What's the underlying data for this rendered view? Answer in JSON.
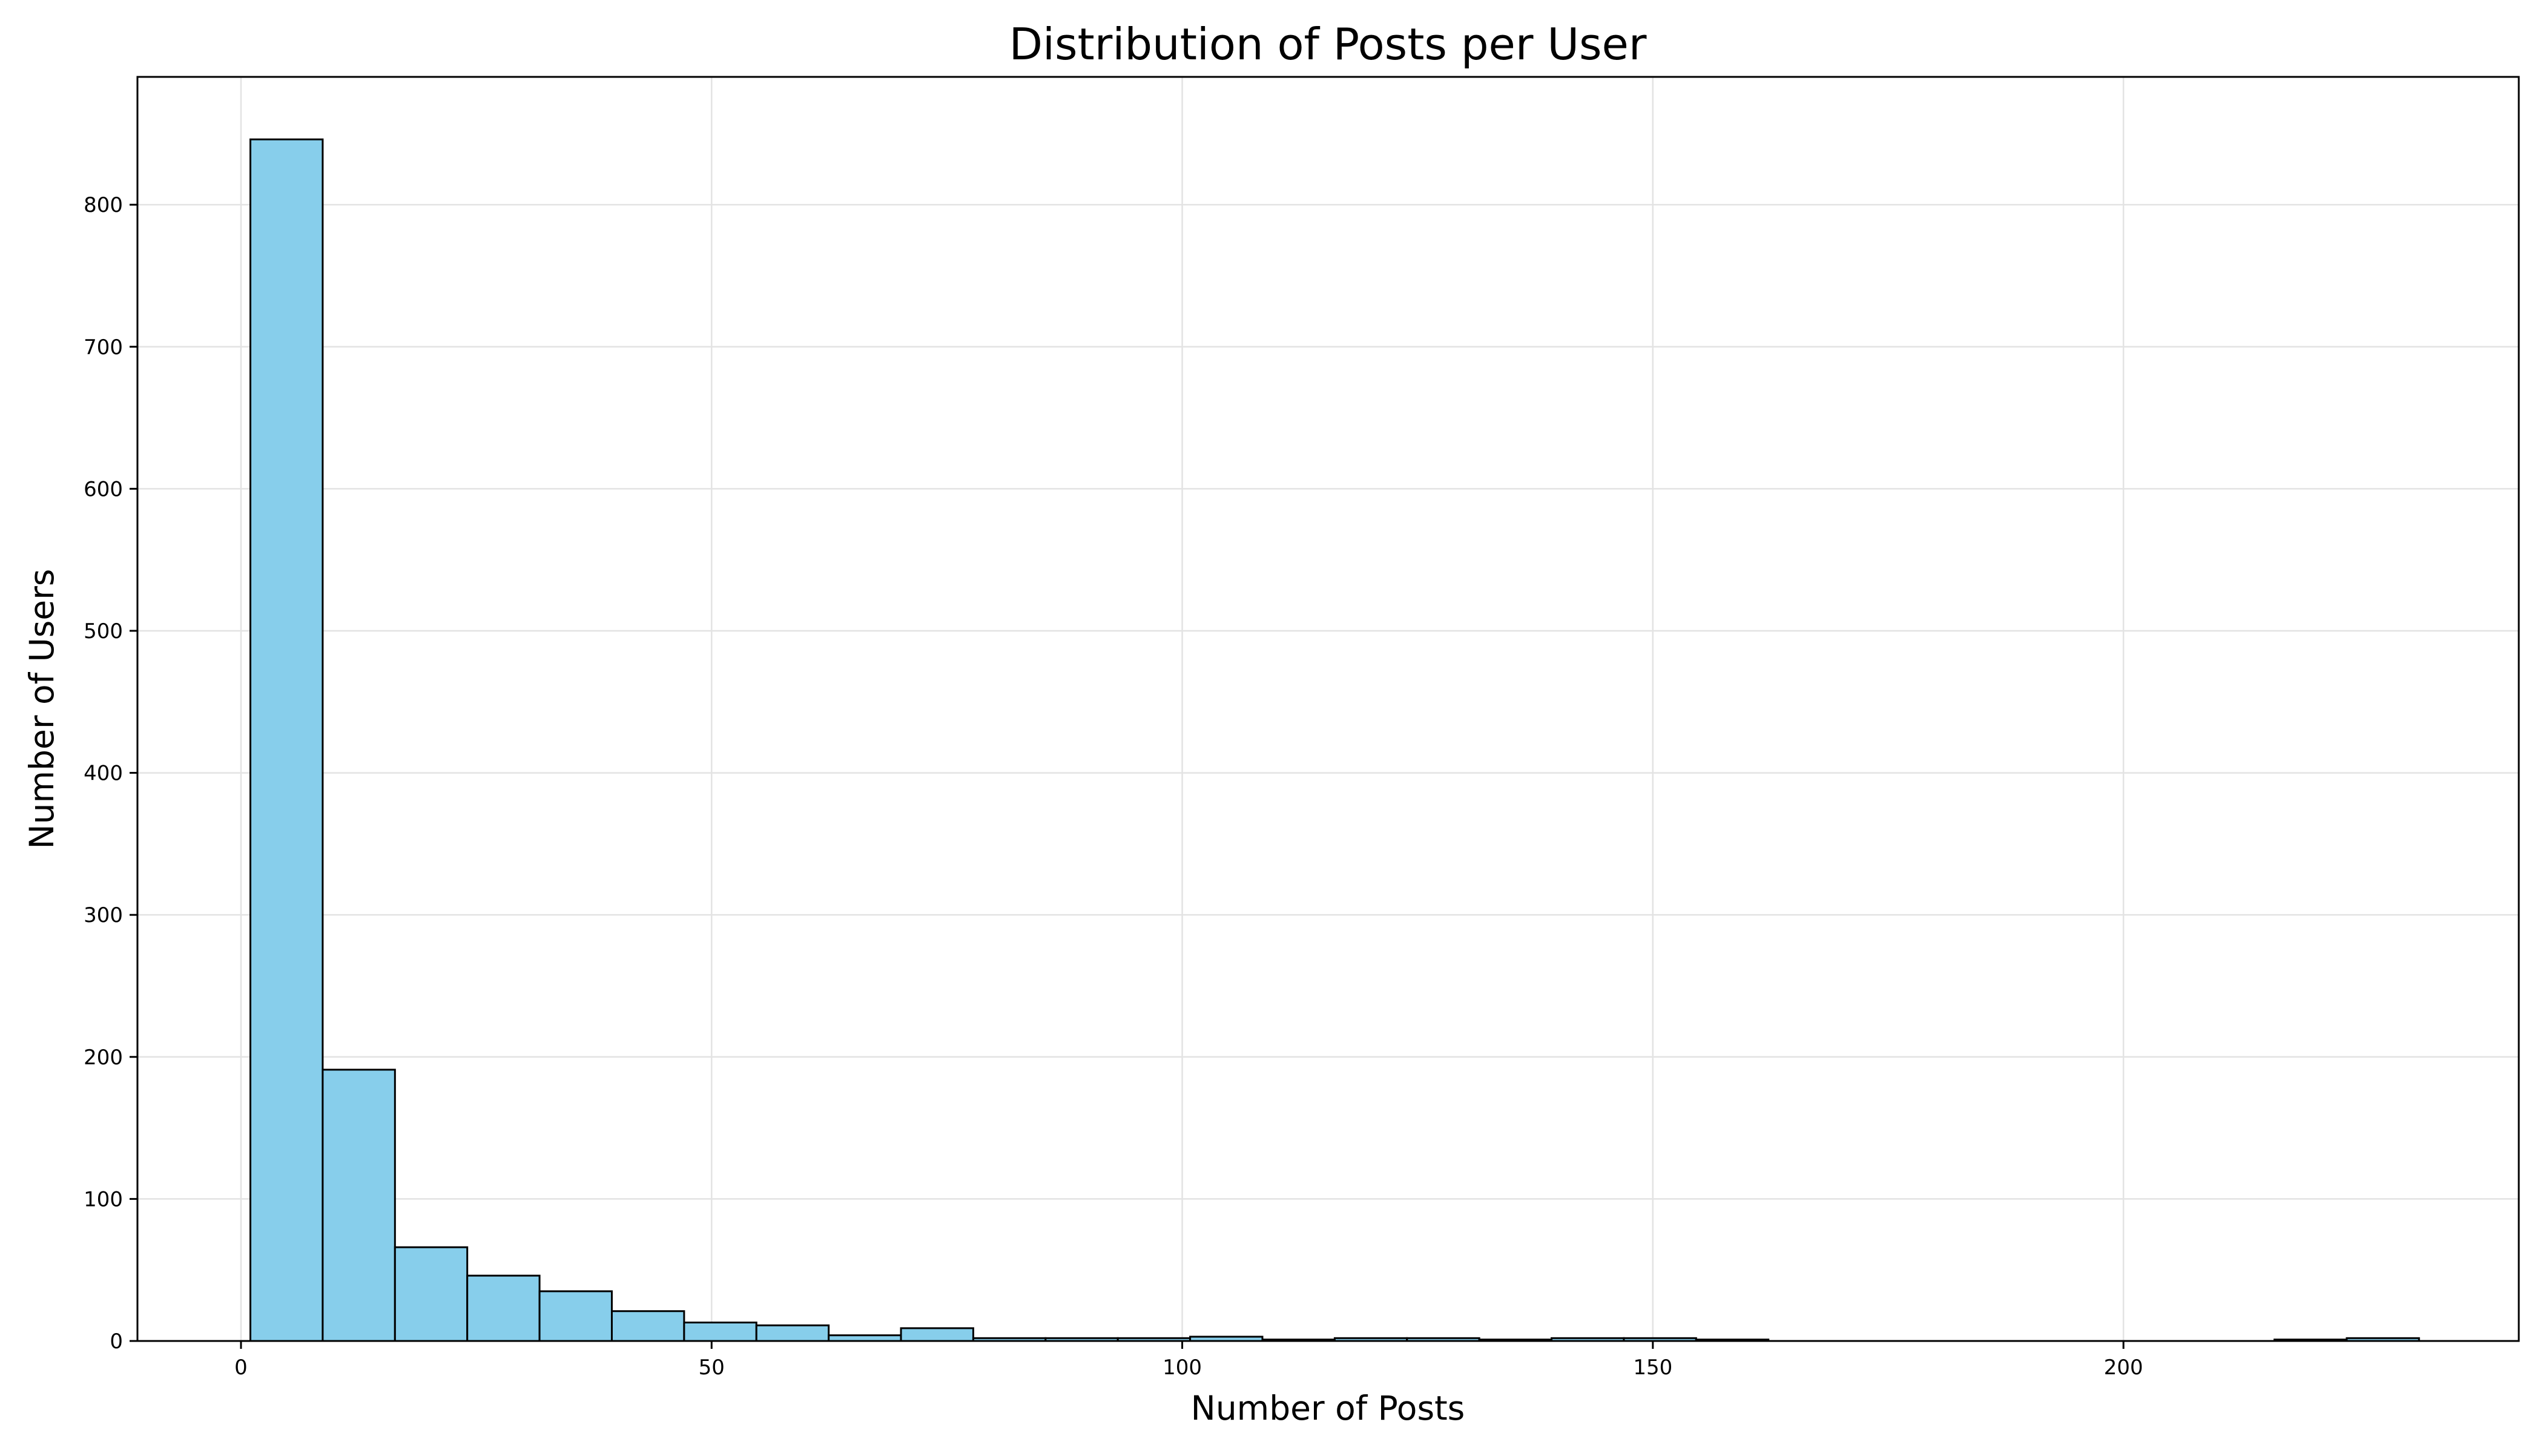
{
  "chart_data": {
    "type": "histogram",
    "title": "Distribution of Posts per User",
    "xlabel": "Number of Posts",
    "ylabel": "Number of Users",
    "xlim": [
      -11,
      242
    ],
    "ylim": [
      0,
      890
    ],
    "xticks": [
      0,
      50,
      100,
      150,
      200
    ],
    "yticks": [
      0,
      100,
      200,
      300,
      400,
      500,
      600,
      700,
      800
    ],
    "grid": true,
    "bin_edges": [
      1,
      8.68,
      16.36,
      24.04,
      31.72,
      39.4,
      47.08,
      54.76,
      62.44,
      70.12,
      77.8,
      85.48,
      93.16,
      100.84,
      108.52,
      116.2,
      123.88,
      131.56,
      139.24,
      146.92,
      154.6,
      162.28,
      169.96,
      177.64,
      185.32,
      193,
      200.68,
      208.36,
      216.04,
      223.72,
      231.4
    ],
    "counts": [
      846,
      191,
      66,
      46,
      35,
      21,
      13,
      11,
      4,
      9,
      2,
      2,
      2,
      3,
      1,
      2,
      2,
      1,
      2,
      2,
      1,
      0,
      0,
      0,
      0,
      0,
      0,
      0,
      1,
      2
    ],
    "colors": {
      "bar_fill": "#87ceeb",
      "bar_edge": "#000000",
      "grid": "#e3e3e3"
    }
  }
}
